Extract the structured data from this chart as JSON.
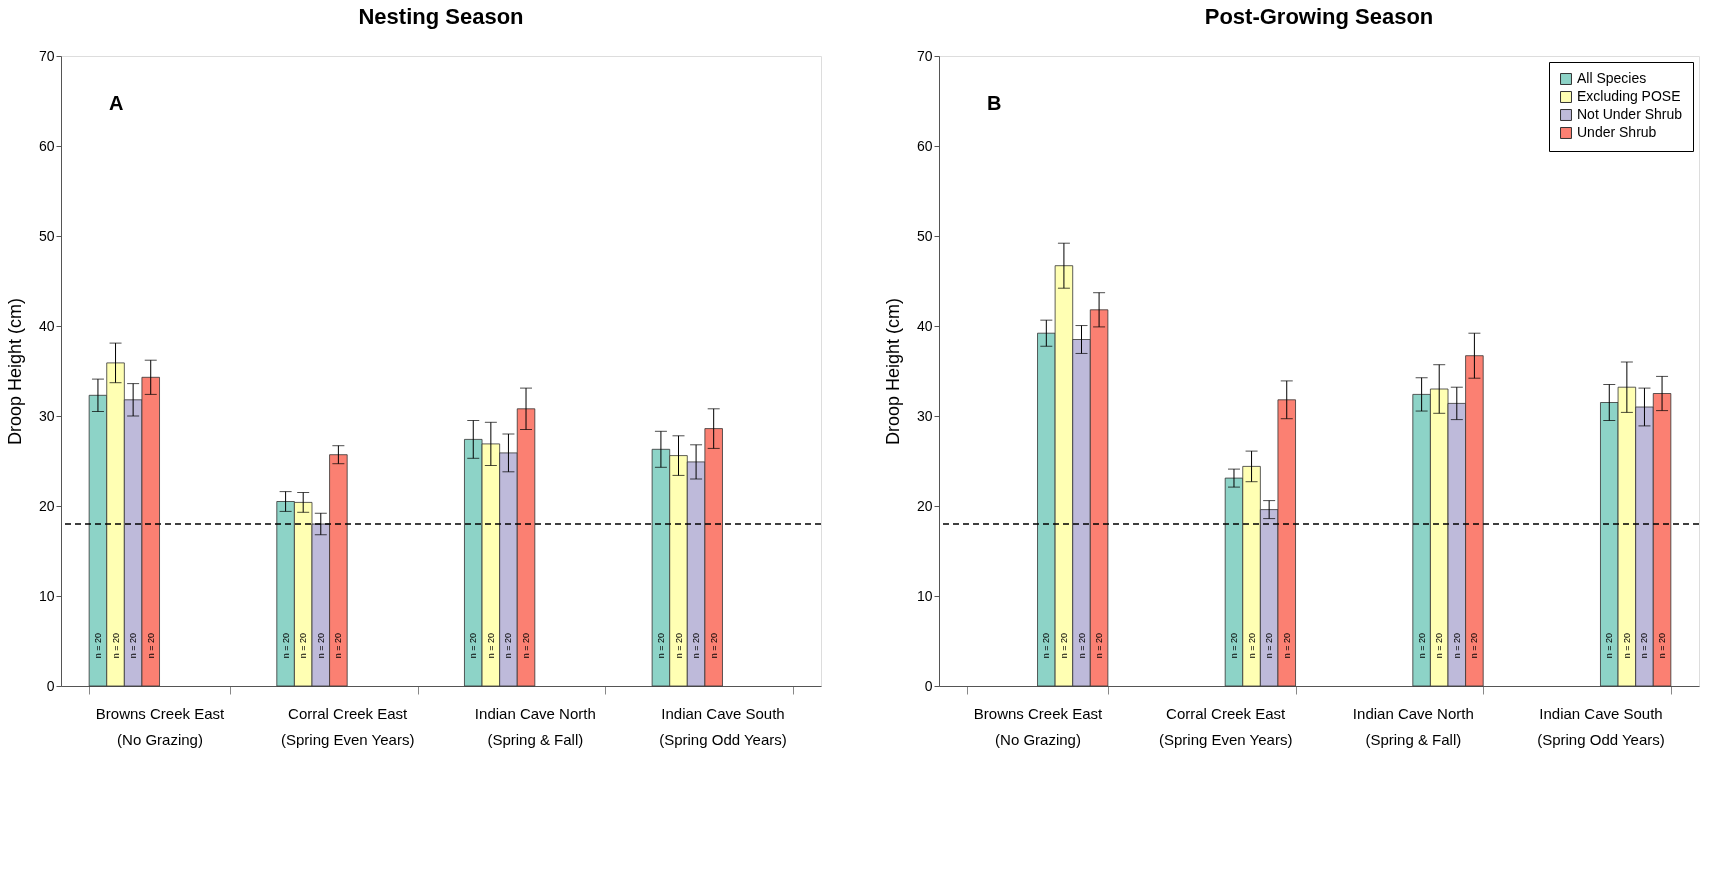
{
  "chart_data": [
    {
      "type": "bar",
      "title": "Nesting Season",
      "ylabel": "Droop Height (cm)",
      "categories": [
        "Browns Creek East\n(No Grazing)",
        "Corral Creek East\n(Spring Even Years)",
        "Indian Cave North\n(Spring & Fall)",
        "Indian Cave South\n(Spring Odd Years)"
      ],
      "series": [
        {
          "color": "#8dd3c7",
          "values": [
            32.3,
            20.5,
            27.4,
            26.3
          ],
          "errors": [
            1.8,
            1.1,
            2.1,
            2.0
          ]
        },
        {
          "color": "#ffffb3",
          "values": [
            35.9,
            20.4,
            26.9,
            25.6
          ],
          "errors": [
            2.2,
            1.1,
            2.4,
            2.2
          ]
        },
        {
          "color": "#bebada",
          "values": [
            31.8,
            18.0,
            25.9,
            24.9
          ],
          "errors": [
            1.8,
            1.2,
            2.1,
            1.9
          ]
        },
        {
          "color": "#fb8072",
          "values": [
            34.3,
            25.7,
            30.8,
            28.6
          ],
          "errors": [
            1.9,
            1.0,
            2.3,
            2.2
          ]
        }
      ],
      "ylim": [
        0,
        70
      ],
      "yticks": [
        0,
        10,
        20,
        30,
        40,
        50,
        60,
        70
      ],
      "grid": false,
      "legend": false,
      "ref_lines": [
        {
          "axis": "y",
          "value": 18,
          "line_style": "dashed",
          "color": "#000000"
        }
      ],
      "annotations": [
        "A",
        "n = 20",
        "n = 20",
        "n = 20",
        "n = 20",
        "n = 20",
        "n = 20",
        "n = 20",
        "n = 20",
        "n = 20",
        "n = 20",
        "n = 20",
        "n = 20",
        "n = 20",
        "n = 20",
        "n = 20",
        "n = 20"
      ]
    },
    {
      "type": "bar",
      "title": "Post-Growing Season",
      "ylabel": "Droop Height (cm)",
      "categories": [
        "Browns Creek East\n(No Grazing)",
        "Corral Creek East\n(Spring Even Years)",
        "Indian Cave North\n(Spring & Fall)",
        "Indian Cave South\n(Spring Odd Years)"
      ],
      "series": [
        {
          "name": "All Species",
          "color": "#8dd3c7",
          "values": [
            39.2,
            23.1,
            32.4,
            31.5
          ],
          "errors": [
            1.45,
            1.0,
            1.85,
            2.0
          ]
        },
        {
          "name": "Excluding POSE",
          "color": "#ffffb3",
          "values": [
            46.7,
            24.4,
            33.0,
            33.2
          ],
          "errors": [
            2.5,
            1.7,
            2.7,
            2.8
          ]
        },
        {
          "name": "Not Under Shrub",
          "color": "#bebada",
          "values": [
            38.5,
            19.6,
            31.4,
            31.0
          ],
          "errors": [
            1.55,
            1.0,
            1.8,
            2.1
          ]
        },
        {
          "name": "Under Shrub",
          "color": "#fb8072",
          "values": [
            41.8,
            31.8,
            36.7,
            32.5
          ],
          "errors": [
            1.9,
            2.1,
            2.5,
            1.9
          ]
        }
      ],
      "ylim": [
        0,
        70
      ],
      "yticks": [
        0,
        10,
        20,
        30,
        40,
        50,
        60,
        70
      ],
      "grid": false,
      "legend": "top right",
      "ref_lines": [
        {
          "axis": "y",
          "value": 18,
          "line_style": "dashed",
          "color": "#000000"
        }
      ],
      "annotations": [
        "B",
        "n = 20",
        "n = 20",
        "n = 20",
        "n = 20",
        "n = 20",
        "n = 20",
        "n = 20",
        "n = 20",
        "n = 20",
        "n = 20",
        "n = 20",
        "n = 20",
        "n = 20",
        "n = 20",
        "n = 20",
        "n = 20"
      ]
    }
  ]
}
